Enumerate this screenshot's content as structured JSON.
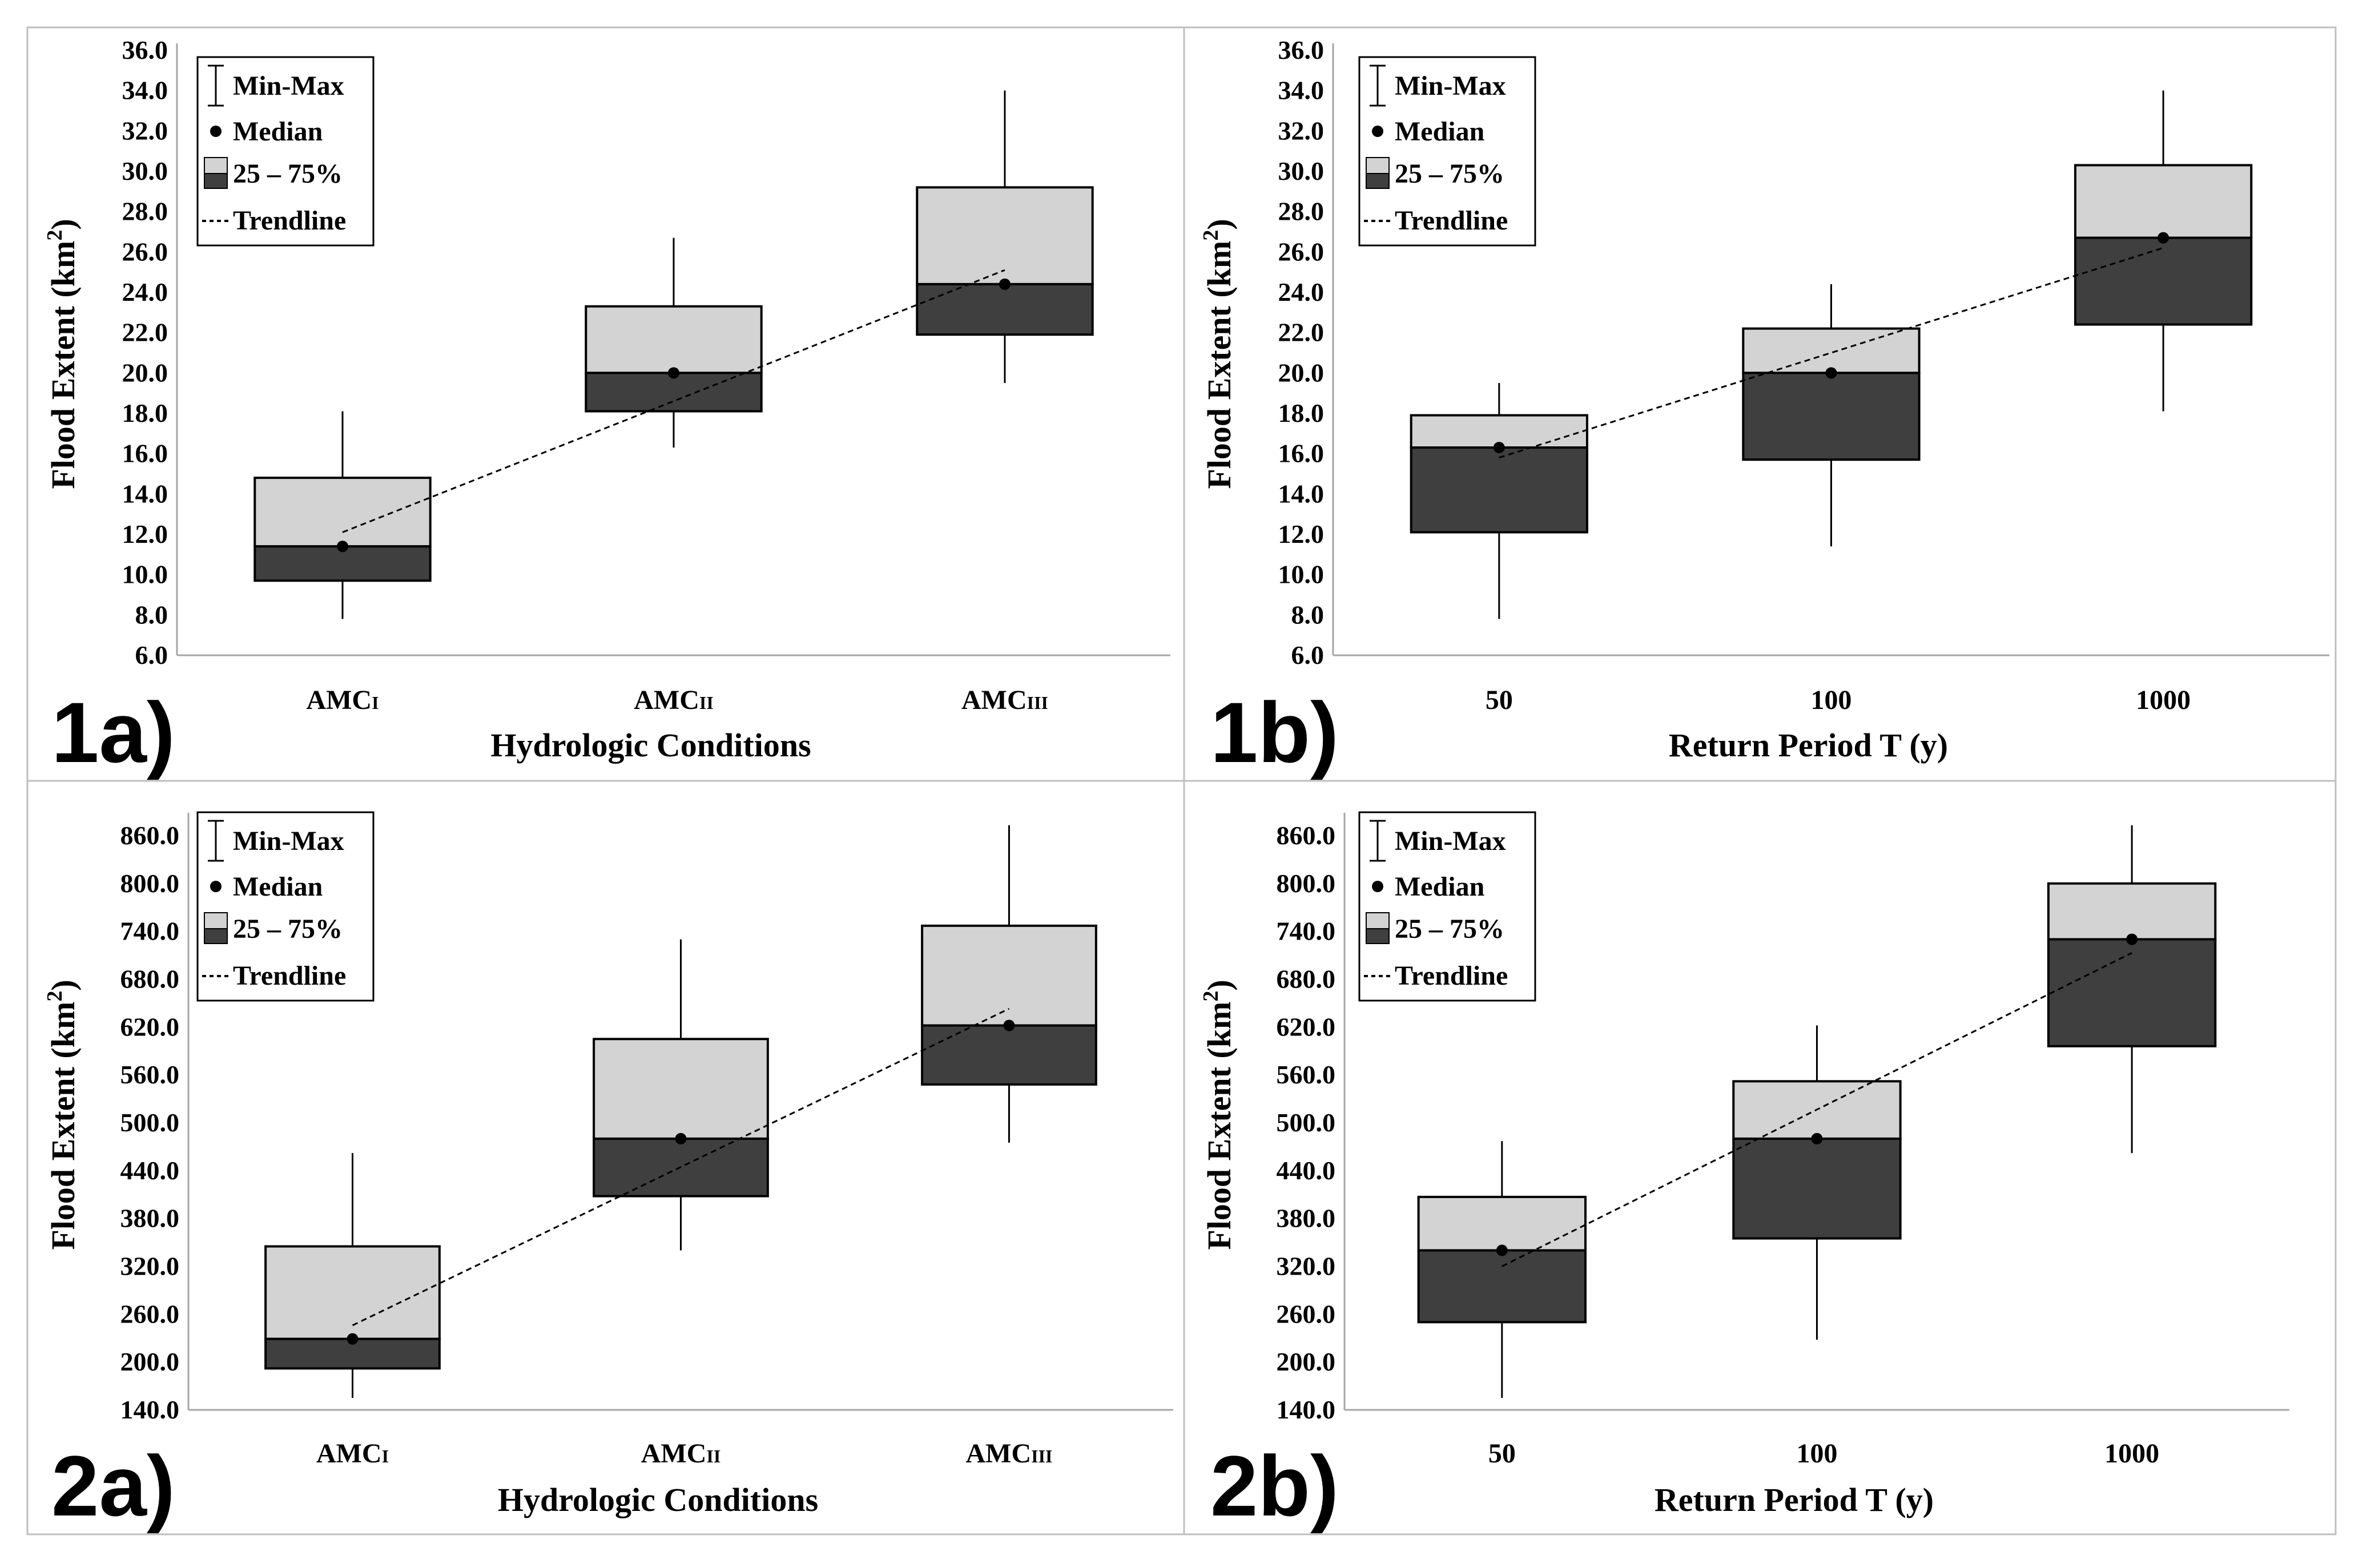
{
  "colors": {
    "upper_box": "#d3d3d3",
    "lower_box": "#3f3f3f",
    "stroke": "#000000",
    "frame": "#bfbfbf",
    "axis_line": "#a6a6a6"
  },
  "legend": {
    "minmax": "Min-Max",
    "median": "Median",
    "iqr": "25 – 75%",
    "trend": "Trendline"
  },
  "chart_data": [
    {
      "id": "1a",
      "panel_label": "1a)",
      "type": "boxplot",
      "title": "",
      "xlabel": "Hydrologic Conditions",
      "ylabel_main": "Flood Extent (km",
      "ylabel_sup": "2",
      "ylabel_close": ")",
      "ylim": [
        6.0,
        36.0
      ],
      "yticks": [
        "6.0",
        "8.0",
        "10.0",
        "12.0",
        "14.0",
        "16.0",
        "18.0",
        "20.0",
        "22.0",
        "24.0",
        "26.0",
        "28.0",
        "30.0",
        "32.0",
        "34.0",
        "36.0"
      ],
      "categories": [
        {
          "base": "AMC",
          "sub": "I"
        },
        {
          "base": "AMC",
          "sub": "II"
        },
        {
          "base": "AMC",
          "sub": "III"
        }
      ],
      "series": [
        {
          "min": 7.8,
          "q1": 9.7,
          "median": 11.4,
          "q3": 14.8,
          "max": 18.1
        },
        {
          "min": 16.3,
          "q1": 18.1,
          "median": 20.0,
          "q3": 23.3,
          "max": 26.7
        },
        {
          "min": 19.5,
          "q1": 21.9,
          "median": 24.4,
          "q3": 29.2,
          "max": 34.0
        }
      ],
      "trend": {
        "start": 12.1,
        "end": 25.1
      }
    },
    {
      "id": "1b",
      "panel_label": "1b)",
      "type": "boxplot",
      "title": "",
      "xlabel": "Return Period T (y)",
      "ylabel_main": "Flood Extent (km",
      "ylabel_sup": "2",
      "ylabel_close": ")",
      "ylim": [
        6.0,
        36.0
      ],
      "yticks": [
        "6.0",
        "8.0",
        "10.0",
        "12.0",
        "14.0",
        "16.0",
        "18.0",
        "20.0",
        "22.0",
        "24.0",
        "26.0",
        "28.0",
        "30.0",
        "32.0",
        "34.0",
        "36.0"
      ],
      "categories": [
        {
          "base": "50",
          "sub": ""
        },
        {
          "base": "100",
          "sub": ""
        },
        {
          "base": "1000",
          "sub": ""
        }
      ],
      "series": [
        {
          "min": 7.8,
          "q1": 12.1,
          "median": 16.3,
          "q3": 17.9,
          "max": 19.5
        },
        {
          "min": 11.4,
          "q1": 15.7,
          "median": 20.0,
          "q3": 22.2,
          "max": 24.4
        },
        {
          "min": 18.1,
          "q1": 22.4,
          "median": 26.7,
          "q3": 30.3,
          "max": 34.0
        }
      ],
      "trend": {
        "start": 15.8,
        "end": 26.2
      }
    },
    {
      "id": "2a",
      "panel_label": "2a)",
      "type": "boxplot",
      "title": "",
      "xlabel": "Hydrologic Conditions",
      "ylabel_main": "Flood Extent (km",
      "ylabel_sup": "2",
      "ylabel_close": ")",
      "ylim": [
        140.0,
        880.0
      ],
      "yticks": [
        "140.0",
        "200.0",
        "260.0",
        "320.0",
        "380.0",
        "440.0",
        "500.0",
        "560.0",
        "620.0",
        "680.0",
        "740.0",
        "800.0",
        "860.0"
      ],
      "categories": [
        {
          "base": "AMC",
          "sub": "I"
        },
        {
          "base": "AMC",
          "sub": "II"
        },
        {
          "base": "AMC",
          "sub": "III"
        }
      ],
      "series": [
        {
          "min": 155.0,
          "q1": 192.0,
          "median": 229.0,
          "q3": 345.0,
          "max": 462.0
        },
        {
          "min": 340.0,
          "q1": 408.0,
          "median": 480.0,
          "q3": 605.0,
          "max": 730.0
        },
        {
          "min": 475.0,
          "q1": 548.0,
          "median": 622.0,
          "q3": 747.0,
          "max": 873.0
        }
      ],
      "trend": {
        "start": 246.0,
        "end": 643.0
      }
    },
    {
      "id": "2b",
      "panel_label": "2b)",
      "type": "boxplot",
      "title": "",
      "xlabel": "Return Period T (y)",
      "ylabel_main": "Flood Extent (km",
      "ylabel_sup": "2",
      "ylabel_close": ")",
      "ylim": [
        140.0,
        880.0
      ],
      "yticks": [
        "140.0",
        "200.0",
        "260.0",
        "320.0",
        "380.0",
        "440.0",
        "500.0",
        "560.0",
        "620.0",
        "680.0",
        "740.0",
        "800.0",
        "860.0"
      ],
      "categories": [
        {
          "base": "50",
          "sub": ""
        },
        {
          "base": "100",
          "sub": ""
        },
        {
          "base": "1000",
          "sub": ""
        }
      ],
      "series": [
        {
          "min": 155.0,
          "q1": 250.0,
          "median": 340.0,
          "q3": 407.0,
          "max": 477.0
        },
        {
          "min": 228.0,
          "q1": 355.0,
          "median": 480.0,
          "q3": 552.0,
          "max": 622.0
        },
        {
          "min": 462.0,
          "q1": 596.0,
          "median": 730.0,
          "q3": 800.0,
          "max": 873.0
        }
      ],
      "trend": {
        "start": 320.0,
        "end": 713.0
      }
    }
  ]
}
